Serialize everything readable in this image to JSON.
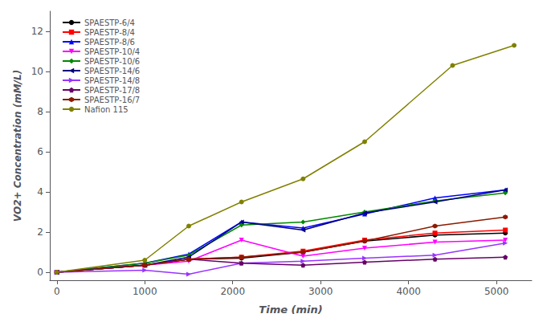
{
  "chart_data": {
    "type": "line",
    "xlabel": "Time (min)",
    "ylabel": "VO2+ Concentration (mM/L)",
    "series": [
      {
        "name": "SPAESTP-6/4",
        "color": "#000000",
        "marker": "circle",
        "x": [
          0,
          1000,
          1500,
          2100,
          2800,
          3500,
          4300,
          5100
        ],
        "values": [
          0.0,
          0.35,
          0.65,
          0.7,
          1.0,
          1.55,
          1.85,
          1.95
        ]
      },
      {
        "name": "SPAESTP-8/4",
        "color": "#ff0000",
        "marker": "square",
        "x": [
          0,
          1000,
          1500,
          2100,
          2800,
          3500,
          4300,
          5100
        ],
        "values": [
          0.0,
          0.35,
          0.65,
          0.75,
          1.05,
          1.6,
          1.95,
          2.1
        ]
      },
      {
        "name": "SPAESTP-8/6",
        "color": "#0000ff",
        "marker": "triangle",
        "x": [
          0,
          1000,
          1500,
          2100,
          2800,
          3500,
          4300,
          5100
        ],
        "values": [
          0.0,
          0.45,
          0.9,
          2.5,
          2.2,
          2.9,
          3.7,
          4.1
        ]
      },
      {
        "name": "SPAESTP-10/4",
        "color": "#ff00ff",
        "marker": "triangle-down",
        "x": [
          0,
          1000,
          1500,
          2100,
          2800,
          3500,
          4300,
          5100
        ],
        "values": [
          0.0,
          0.35,
          0.55,
          1.6,
          0.8,
          1.2,
          1.5,
          1.6
        ]
      },
      {
        "name": "SPAESTP-10/6",
        "color": "#008800",
        "marker": "diamond",
        "x": [
          0,
          1000,
          1500,
          2100,
          2800,
          3500,
          4300,
          5100
        ],
        "values": [
          0.0,
          0.45,
          0.85,
          2.35,
          2.5,
          3.0,
          3.55,
          3.95
        ]
      },
      {
        "name": "SPAESTP-14/6",
        "color": "#00007f",
        "marker": "triangle-left",
        "x": [
          0,
          1000,
          1500,
          2100,
          2800,
          3500,
          4300,
          5100
        ],
        "values": [
          0.0,
          0.35,
          0.75,
          2.5,
          2.1,
          2.95,
          3.5,
          4.1
        ]
      },
      {
        "name": "SPAESTP-14/8",
        "color": "#9933ff",
        "marker": "triangle-right",
        "x": [
          0,
          1000,
          1500,
          2100,
          2800,
          3500,
          4300,
          5100
        ],
        "values": [
          0.0,
          0.1,
          -0.1,
          0.45,
          0.55,
          0.7,
          0.85,
          1.45
        ]
      },
      {
        "name": "SPAESTP-17/8",
        "color": "#660066",
        "marker": "pentagon",
        "x": [
          0,
          1000,
          1500,
          2100,
          2800,
          3500,
          4300,
          5100
        ],
        "values": [
          0.0,
          0.35,
          0.65,
          0.45,
          0.35,
          0.5,
          0.65,
          0.75
        ]
      },
      {
        "name": "SPAESTP-16/7",
        "color": "#8b1a00",
        "marker": "hexagon",
        "x": [
          0,
          1000,
          1500,
          2100,
          2800,
          3500,
          4300,
          5100
        ],
        "values": [
          0.0,
          0.35,
          0.65,
          0.75,
          1.0,
          1.55,
          2.3,
          2.75
        ]
      },
      {
        "name": "Nafion 115",
        "color": "#808000",
        "marker": "circle",
        "x": [
          0,
          1000,
          1500,
          2100,
          2800,
          3500,
          4500,
          5200
        ],
        "values": [
          0.0,
          0.6,
          2.3,
          3.5,
          4.65,
          6.5,
          10.3,
          11.3
        ]
      }
    ],
    "xlim": [
      -80,
      5400
    ],
    "ylim": [
      -0.4,
      13
    ],
    "xticks": [
      0,
      1000,
      2000,
      3000,
      4000,
      5000
    ],
    "yticks": [
      0,
      2,
      4,
      6,
      8,
      10,
      12
    ],
    "grid": false,
    "legend": "upper left"
  }
}
